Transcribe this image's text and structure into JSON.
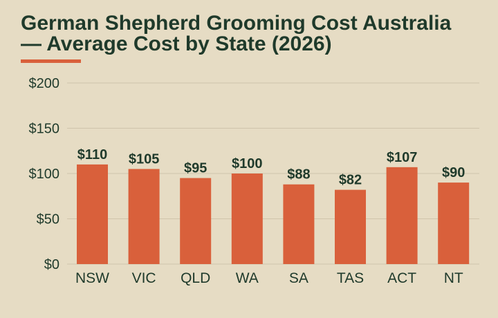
{
  "title_lines": [
    "German Shepherd Grooming Cost Australia",
    "— Average Cost by State (2026)"
  ],
  "colors": {
    "background": "#e6dcc4",
    "bar": "#d9603b",
    "text": "#1f3a2b",
    "grid": "#cfc4ab",
    "accent": "#d9603b"
  },
  "chart_data": {
    "type": "bar",
    "title": "German Shepherd Grooming Cost Australia — Average Cost by State (2026)",
    "xlabel": "",
    "ylabel": "",
    "categories": [
      "NSW",
      "VIC",
      "QLD",
      "WA",
      "SA",
      "TAS",
      "ACT",
      "NT"
    ],
    "values": [
      110,
      105,
      95,
      100,
      88,
      82,
      107,
      90
    ],
    "data_labels": [
      "$110",
      "$105",
      "$95",
      "$100",
      "$88",
      "$82",
      "$107",
      "$90"
    ],
    "ylim": [
      0,
      200
    ],
    "yticks": [
      0,
      50,
      100,
      150,
      200
    ],
    "ytick_labels": [
      "$0",
      "$50",
      "$100",
      "$150",
      "$200"
    ],
    "grid": true,
    "legend": "none"
  }
}
